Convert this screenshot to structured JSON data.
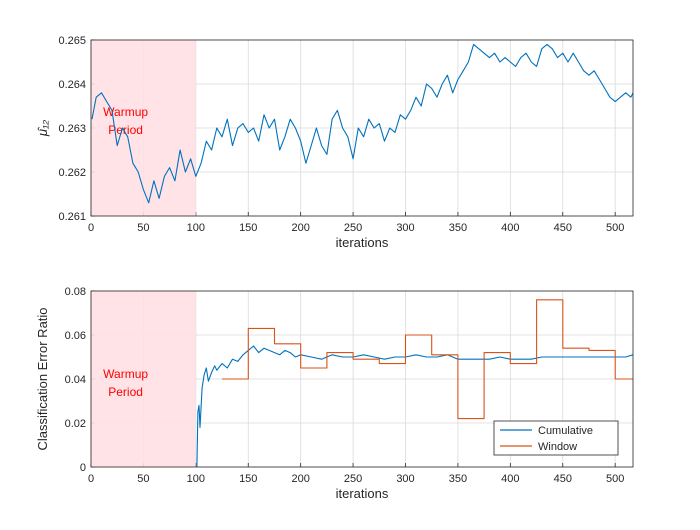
{
  "colors": {
    "series_blue": "#0072BD",
    "series_orange": "#D95319",
    "warmup_fill": "#FFE0E3",
    "warmup_text": "#FF0000",
    "grid": "#DADADA",
    "axes": "#262626"
  },
  "chart_data": [
    {
      "type": "line",
      "xlabel": "iterations",
      "ylabel": "μ̂₁₂",
      "xlim": [
        0,
        517
      ],
      "ylim": [
        0.261,
        0.265
      ],
      "xticks": [
        0,
        50,
        100,
        150,
        200,
        250,
        300,
        350,
        400,
        450,
        500
      ],
      "xtick_labels": [
        "0",
        "50",
        "100",
        "150",
        "200",
        "250",
        "300",
        "350",
        "400",
        "450",
        "500"
      ],
      "yticks": [
        0.261,
        0.262,
        0.263,
        0.264,
        0.265
      ],
      "ytick_labels": [
        "0.261",
        "0.262",
        "0.263",
        "0.264",
        "0.265"
      ],
      "grid": true,
      "annotation": {
        "lines": [
          "Warmup",
          "Period"
        ],
        "x": 33,
        "y": 0.2632
      },
      "shaded_region": [
        0,
        100
      ],
      "series": [
        {
          "color": "#0072BD",
          "x": [
            1,
            5,
            10,
            15,
            20,
            25,
            30,
            35,
            40,
            45,
            50,
            55,
            60,
            65,
            70,
            75,
            80,
            85,
            90,
            95,
            100,
            105,
            110,
            115,
            120,
            125,
            130,
            135,
            140,
            145,
            150,
            155,
            160,
            165,
            170,
            175,
            180,
            185,
            190,
            195,
            200,
            205,
            210,
            215,
            220,
            225,
            230,
            235,
            240,
            245,
            250,
            255,
            260,
            265,
            270,
            275,
            280,
            285,
            290,
            295,
            300,
            305,
            310,
            315,
            320,
            325,
            330,
            335,
            340,
            345,
            350,
            355,
            360,
            365,
            370,
            375,
            380,
            385,
            390,
            395,
            400,
            405,
            410,
            415,
            420,
            425,
            430,
            435,
            440,
            445,
            450,
            455,
            460,
            465,
            470,
            475,
            480,
            485,
            490,
            495,
            500,
            505,
            510,
            515,
            517
          ],
          "values": [
            0.2632,
            0.2637,
            0.2638,
            0.2636,
            0.2634,
            0.2626,
            0.263,
            0.2628,
            0.2622,
            0.262,
            0.2616,
            0.2613,
            0.2618,
            0.2614,
            0.2619,
            0.2621,
            0.2618,
            0.2625,
            0.262,
            0.2623,
            0.2619,
            0.2622,
            0.2627,
            0.2625,
            0.263,
            0.2628,
            0.2632,
            0.2626,
            0.263,
            0.2631,
            0.2629,
            0.263,
            0.2627,
            0.2633,
            0.263,
            0.2632,
            0.2625,
            0.2628,
            0.2632,
            0.263,
            0.2627,
            0.2622,
            0.2626,
            0.263,
            0.2626,
            0.2624,
            0.2632,
            0.2634,
            0.263,
            0.2628,
            0.2623,
            0.263,
            0.2628,
            0.2632,
            0.263,
            0.2631,
            0.2627,
            0.263,
            0.2629,
            0.2633,
            0.2632,
            0.2634,
            0.2637,
            0.2635,
            0.264,
            0.2639,
            0.2637,
            0.264,
            0.2642,
            0.2638,
            0.2641,
            0.2643,
            0.2645,
            0.2649,
            0.2648,
            0.2647,
            0.2646,
            0.2647,
            0.2645,
            0.2646,
            0.2645,
            0.2644,
            0.2646,
            0.2647,
            0.2645,
            0.2644,
            0.2648,
            0.2649,
            0.2648,
            0.2646,
            0.2647,
            0.2645,
            0.2647,
            0.2645,
            0.2643,
            0.2642,
            0.2643,
            0.2641,
            0.2639,
            0.2637,
            0.2636,
            0.2637,
            0.2638,
            0.2637,
            0.2638
          ]
        }
      ]
    },
    {
      "type": "line",
      "xlabel": "iterations",
      "ylabel": "Classification Error Ratio",
      "xlim": [
        0,
        517
      ],
      "ylim": [
        0,
        0.08
      ],
      "xticks": [
        0,
        50,
        100,
        150,
        200,
        250,
        300,
        350,
        400,
        450,
        500
      ],
      "xtick_labels": [
        "0",
        "50",
        "100",
        "150",
        "200",
        "250",
        "300",
        "350",
        "400",
        "450",
        "500"
      ],
      "yticks": [
        0,
        0.02,
        0.04,
        0.06,
        0.08
      ],
      "ytick_labels": [
        "0",
        "0.02",
        "0.04",
        "0.06",
        "0.08"
      ],
      "grid": true,
      "annotation": {
        "lines": [
          "Warmup",
          "Period"
        ],
        "x": 33,
        "y": 0.039
      },
      "shaded_region": [
        0,
        100
      ],
      "legend": {
        "placement": "bottom-right",
        "entries": [
          "Cumulative",
          "Window"
        ]
      },
      "series": [
        {
          "name": "Cumulative",
          "color": "#0072BD",
          "x": [
            101,
            102,
            103,
            104,
            106,
            108,
            110,
            112,
            115,
            118,
            120,
            125,
            130,
            135,
            140,
            145,
            150,
            155,
            160,
            165,
            170,
            175,
            180,
            185,
            190,
            195,
            200,
            210,
            220,
            230,
            240,
            250,
            260,
            270,
            280,
            290,
            300,
            310,
            320,
            330,
            340,
            350,
            360,
            370,
            380,
            390,
            400,
            410,
            420,
            430,
            440,
            450,
            460,
            470,
            480,
            490,
            500,
            510,
            517
          ],
          "values": [
            0.0,
            0.025,
            0.028,
            0.018,
            0.036,
            0.042,
            0.045,
            0.039,
            0.043,
            0.046,
            0.044,
            0.047,
            0.045,
            0.049,
            0.048,
            0.051,
            0.053,
            0.055,
            0.052,
            0.054,
            0.053,
            0.052,
            0.051,
            0.053,
            0.052,
            0.05,
            0.051,
            0.05,
            0.049,
            0.051,
            0.05,
            0.05,
            0.051,
            0.05,
            0.049,
            0.05,
            0.05,
            0.051,
            0.05,
            0.05,
            0.051,
            0.049,
            0.049,
            0.049,
            0.049,
            0.05,
            0.049,
            0.049,
            0.049,
            0.05,
            0.05,
            0.05,
            0.05,
            0.05,
            0.05,
            0.05,
            0.05,
            0.05,
            0.051
          ]
        },
        {
          "name": "Window",
          "color": "#D95319",
          "step": true,
          "x": [
            125,
            150,
            175,
            200,
            225,
            250,
            275,
            300,
            325,
            350,
            375,
            400,
            425,
            450,
            475,
            500,
            517
          ],
          "values": [
            0.04,
            0.063,
            0.056,
            0.045,
            0.052,
            0.049,
            0.047,
            0.06,
            0.051,
            0.022,
            0.052,
            0.047,
            0.076,
            0.054,
            0.053,
            0.04,
            0.04
          ]
        }
      ]
    }
  ]
}
